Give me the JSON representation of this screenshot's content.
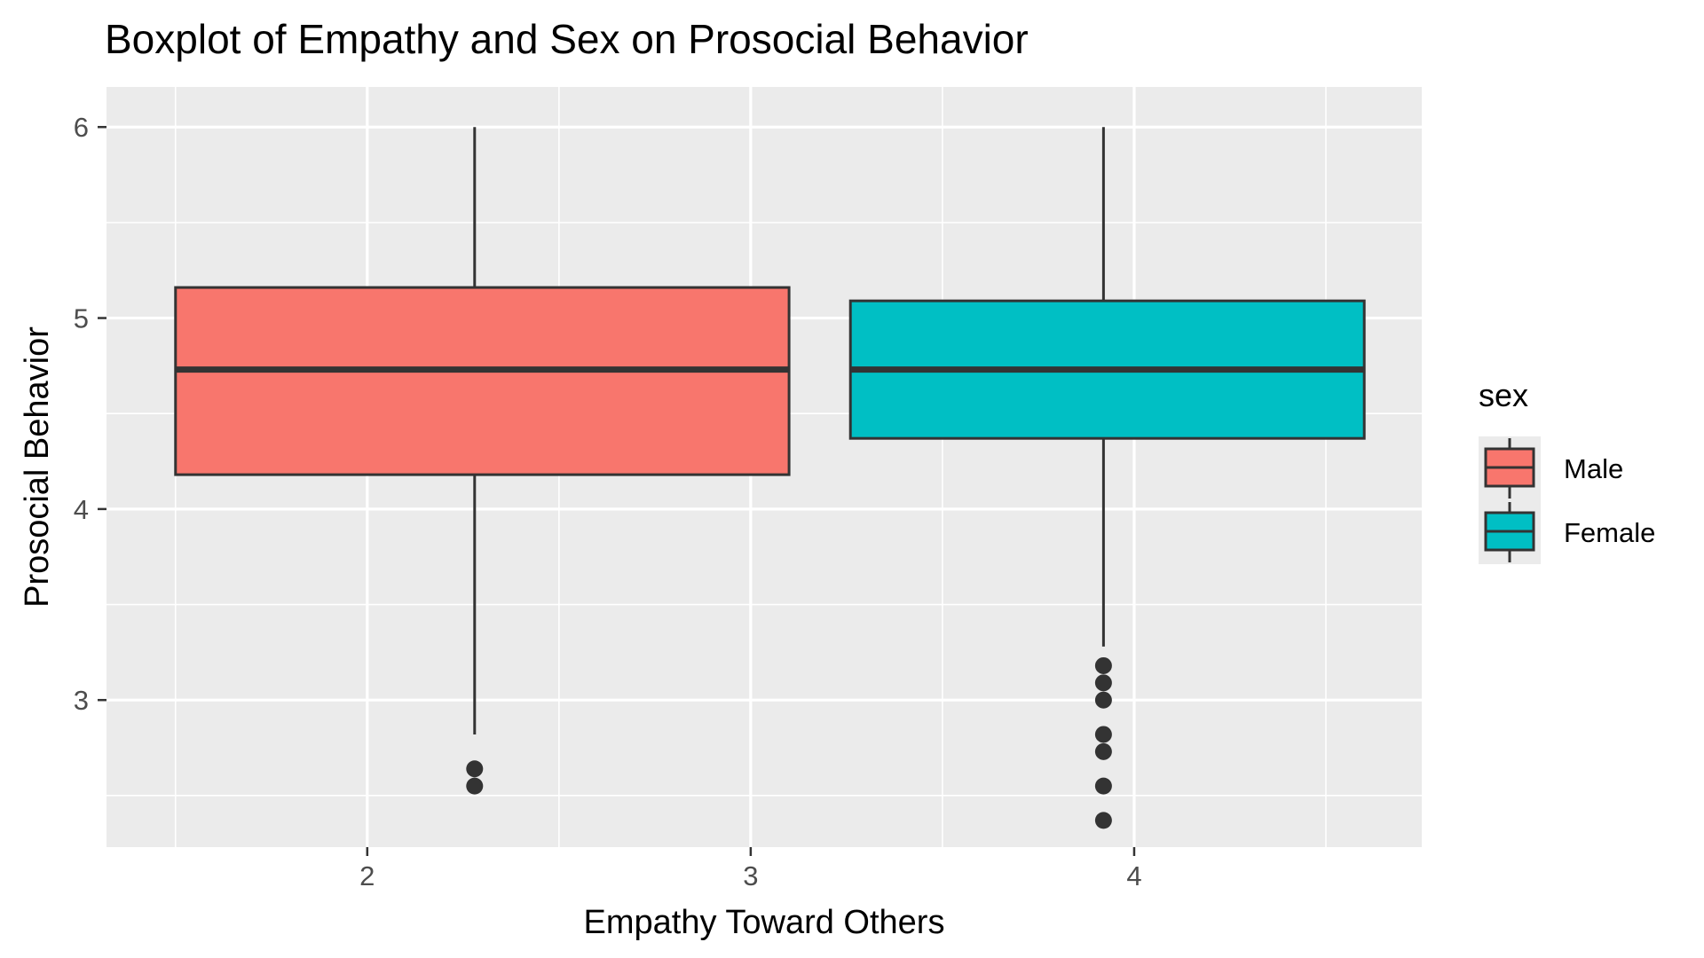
{
  "chart_data": {
    "type": "boxplot",
    "title": "Boxplot of Empathy and Sex on Prosocial Behavior",
    "xlabel": "Empathy Toward Others",
    "ylabel": "Prosocial Behavior",
    "xlim": [
      1.32,
      4.75
    ],
    "ylim": [
      2.23,
      6.21
    ],
    "x_ticks": [
      2,
      3,
      4
    ],
    "x_minor_ticks": [
      1.5,
      2.5,
      3.5,
      4.5
    ],
    "y_ticks": [
      3,
      4,
      5,
      6
    ],
    "y_minor_ticks": [
      2.5,
      3.5,
      4.5,
      5.5
    ],
    "grid": true,
    "legend_position": "right",
    "legend_title": "sex",
    "series": [
      {
        "name": "Male",
        "color": "#F8766D",
        "x_range": [
          1.5,
          3.1
        ],
        "x_center": 2.28,
        "whisker_low": 2.82,
        "q1": 4.18,
        "median": 4.73,
        "q3": 5.16,
        "whisker_high": 6.0,
        "outliers": [
          2.64,
          2.55
        ]
      },
      {
        "name": "Female",
        "color": "#00BFC4",
        "x_range": [
          3.26,
          4.6
        ],
        "x_center": 3.92,
        "whisker_low": 3.28,
        "q1": 4.37,
        "median": 4.73,
        "q3": 5.09,
        "whisker_high": 6.0,
        "outliers": [
          3.18,
          3.09,
          3.0,
          2.82,
          2.73,
          2.55,
          2.37
        ]
      }
    ]
  }
}
